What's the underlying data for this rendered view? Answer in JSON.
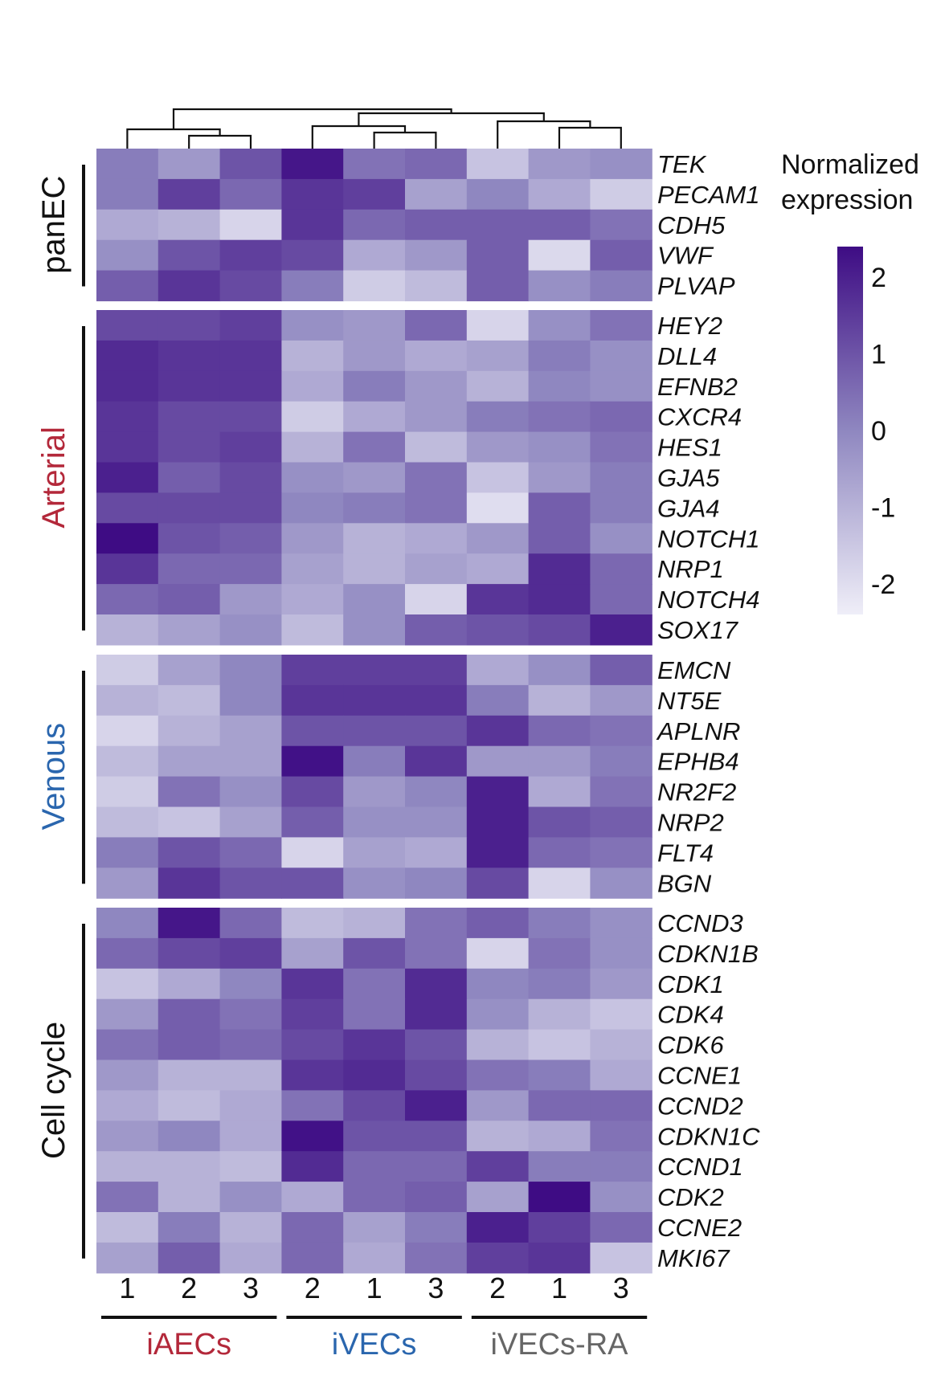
{
  "chart_data": {
    "type": "heatmap",
    "legend": {
      "title_line1": "Normalized",
      "title_line2": "expression",
      "ticks": [
        "2",
        "1",
        "0",
        "-1",
        "-2"
      ],
      "tick_values": [
        2,
        1,
        0,
        -1,
        -2
      ],
      "range": [
        -2.4,
        2.4
      ],
      "color_low": "#efeef8",
      "color_mid": "#8f87c0",
      "color_high": "#3e0c84"
    },
    "column_labels": [
      "1",
      "2",
      "3",
      "2",
      "1",
      "3",
      "2",
      "1",
      "3"
    ],
    "groups": [
      {
        "label": "iAECs",
        "color": "#b3283a"
      },
      {
        "label": "iVECs",
        "color": "#2a66ae"
      },
      {
        "label": "iVECs-RA",
        "color": "#666666"
      }
    ],
    "sections": [
      {
        "label": "panEC",
        "color": "#111111",
        "genes": [
          "TEK",
          "PECAM1",
          "CDH5",
          "VWF",
          "PLVAP"
        ],
        "values": [
          [
            0.2,
            -0.4,
            1.0,
            2.2,
            0.4,
            0.6,
            -1.4,
            -0.4,
            -0.2
          ],
          [
            0.2,
            1.4,
            0.6,
            1.6,
            1.4,
            -0.6,
            0.0,
            -0.8,
            -1.6
          ],
          [
            -0.8,
            -1.0,
            -1.8,
            1.6,
            0.6,
            0.8,
            0.8,
            0.8,
            0.4
          ],
          [
            -0.2,
            1.0,
            1.4,
            1.2,
            -0.8,
            -0.4,
            0.8,
            -1.9,
            0.8
          ],
          [
            0.8,
            1.6,
            1.2,
            0.2,
            -1.6,
            -1.2,
            0.8,
            -0.2,
            0.2
          ]
        ]
      },
      {
        "label": "Arterial",
        "color": "#b3283a",
        "genes": [
          "HEY2",
          "DLL4",
          "EFNB2",
          "CXCR4",
          "HES1",
          "GJA5",
          "GJA4",
          "NOTCH1",
          "NRP1",
          "NOTCH4",
          "SOX17"
        ],
        "values": [
          [
            1.2,
            1.2,
            1.4,
            -0.2,
            -0.4,
            0.6,
            -1.8,
            -0.2,
            0.4
          ],
          [
            1.8,
            1.6,
            1.6,
            -1.0,
            -0.4,
            -0.8,
            -0.6,
            0.2,
            -0.2
          ],
          [
            1.8,
            1.6,
            1.6,
            -0.8,
            0.2,
            -0.4,
            -1.0,
            0.0,
            -0.2
          ],
          [
            1.6,
            1.2,
            1.2,
            -1.6,
            -0.8,
            -0.4,
            0.2,
            0.4,
            0.6
          ],
          [
            1.6,
            1.2,
            1.4,
            -1.0,
            0.4,
            -1.2,
            -0.4,
            -0.2,
            0.4
          ],
          [
            2.0,
            0.8,
            1.2,
            -0.2,
            -0.4,
            0.4,
            -1.4,
            -0.4,
            0.2
          ],
          [
            1.2,
            1.2,
            1.2,
            0.0,
            0.2,
            0.4,
            -2.0,
            0.8,
            0.2
          ],
          [
            2.4,
            1.0,
            0.8,
            -0.4,
            -1.0,
            -0.8,
            -0.4,
            0.8,
            -0.2
          ],
          [
            1.6,
            0.6,
            0.6,
            -0.6,
            -1.0,
            -0.6,
            -0.8,
            1.8,
            0.6
          ],
          [
            0.6,
            0.8,
            -0.4,
            -0.8,
            -0.2,
            -1.8,
            1.6,
            1.8,
            0.6
          ],
          [
            -1.0,
            -0.6,
            -0.2,
            -1.2,
            -0.2,
            0.8,
            1.0,
            1.2,
            2.0
          ]
        ]
      },
      {
        "label": "Venous",
        "color": "#2a66ae",
        "genes": [
          "EMCN",
          "NT5E",
          "APLNR",
          "EPHB4",
          "NR2F2",
          "NRP2",
          "FLT4",
          "BGN"
        ],
        "values": [
          [
            -1.6,
            -0.6,
            0.0,
            1.4,
            1.4,
            1.4,
            -0.8,
            -0.2,
            0.8
          ],
          [
            -1.0,
            -1.2,
            0.0,
            1.6,
            1.6,
            1.6,
            0.2,
            -1.0,
            -0.4
          ],
          [
            -1.8,
            -1.0,
            -0.6,
            1.0,
            1.0,
            1.0,
            1.6,
            0.6,
            0.4
          ],
          [
            -1.2,
            -0.6,
            -0.6,
            2.3,
            0.2,
            1.6,
            -0.4,
            -0.4,
            0.2
          ],
          [
            -1.6,
            0.4,
            -0.2,
            1.2,
            -0.4,
            0.0,
            2.0,
            -0.8,
            0.4
          ],
          [
            -1.2,
            -1.4,
            -0.6,
            0.8,
            -0.2,
            -0.2,
            2.0,
            1.0,
            0.8
          ],
          [
            0.2,
            1.0,
            0.6,
            -1.8,
            -0.6,
            -0.8,
            2.0,
            0.6,
            0.4
          ],
          [
            -0.4,
            1.6,
            1.0,
            1.0,
            -0.2,
            0.0,
            1.2,
            -1.8,
            -0.2
          ]
        ]
      },
      {
        "label": "Cell cycle",
        "color": "#111111",
        "genes": [
          "CCND3",
          "CDKN1B",
          "CDK1",
          "CDK4",
          "CDK6",
          "CCNE1",
          "CCND2",
          "CDKN1C",
          "CCND1",
          "CDK2",
          "CCNE2",
          "MKI67"
        ],
        "values": [
          [
            0.0,
            2.2,
            0.6,
            -1.2,
            -1.0,
            0.4,
            0.8,
            0.2,
            -0.2
          ],
          [
            0.6,
            1.2,
            1.4,
            -0.6,
            1.0,
            0.4,
            -1.8,
            0.4,
            -0.2
          ],
          [
            -1.4,
            -0.8,
            0.0,
            1.6,
            0.4,
            1.8,
            0.0,
            0.2,
            -0.4
          ],
          [
            -0.4,
            0.8,
            0.4,
            1.4,
            0.4,
            1.8,
            -0.2,
            -1.0,
            -1.4
          ],
          [
            0.4,
            0.8,
            0.6,
            1.2,
            1.6,
            1.0,
            -1.0,
            -1.4,
            -1.0
          ],
          [
            -0.4,
            -1.0,
            -1.0,
            1.6,
            1.8,
            1.2,
            0.4,
            0.2,
            -0.8
          ],
          [
            -0.8,
            -1.2,
            -0.8,
            0.4,
            1.2,
            2.0,
            -0.4,
            0.6,
            0.6
          ],
          [
            -0.4,
            0.0,
            -0.8,
            2.3,
            1.0,
            1.0,
            -1.0,
            -0.8,
            0.4
          ],
          [
            -1.0,
            -1.0,
            -1.2,
            1.8,
            0.6,
            0.6,
            1.4,
            0.2,
            0.2
          ],
          [
            0.4,
            -1.0,
            -0.2,
            -0.8,
            0.6,
            0.8,
            -0.6,
            2.4,
            -0.2
          ],
          [
            -1.2,
            0.2,
            -1.0,
            0.6,
            -0.6,
            0.2,
            2.0,
            1.4,
            0.6
          ],
          [
            -0.6,
            0.8,
            -0.8,
            0.6,
            -0.8,
            0.4,
            1.4,
            1.6,
            -1.4
          ]
        ]
      }
    ]
  }
}
